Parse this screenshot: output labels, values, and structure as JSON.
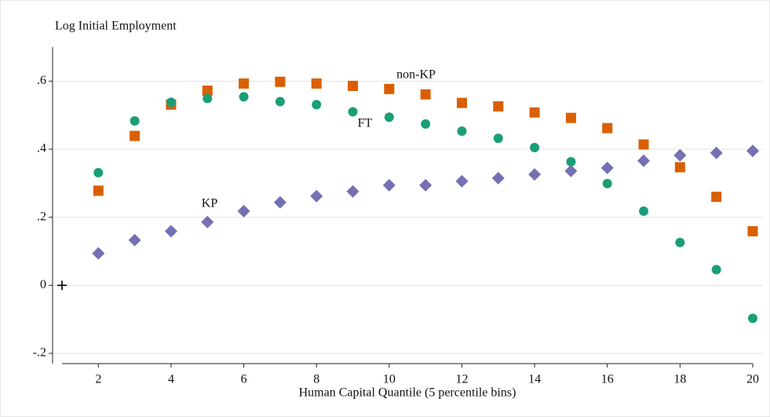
{
  "chart_data": {
    "type": "scatter",
    "title": "Log Initial Employment",
    "x_label": "Human Capital Quantile (5 percentile bins)",
    "xlim": [
      1,
      20
    ],
    "ylim": [
      -0.23,
      0.7
    ],
    "xticks": [
      2,
      4,
      6,
      8,
      10,
      12,
      14,
      16,
      18,
      20
    ],
    "yticks": [
      {
        "value": -0.2,
        "label": "-.2"
      },
      0,
      {
        "value": 0.2,
        "label": ".2"
      },
      {
        "value": 0.4,
        "label": ".4"
      },
      {
        "value": 0.6,
        "label": ".6"
      }
    ],
    "grid": true,
    "series": [
      {
        "name": "non-KP",
        "color": "#d95f02",
        "marker": "square",
        "x": [
          2,
          3,
          4,
          5,
          6,
          7,
          8,
          9,
          10,
          11,
          12,
          13,
          14,
          15,
          16,
          17,
          18,
          19,
          20
        ],
        "values": [
          0.278,
          0.439,
          0.531,
          0.572,
          0.593,
          0.598,
          0.593,
          0.586,
          0.577,
          0.561,
          0.536,
          0.526,
          0.508,
          0.492,
          0.462,
          0.414,
          0.347,
          0.26,
          0.159
        ]
      },
      {
        "name": "FT",
        "color": "#1b9e77",
        "marker": "circle",
        "x": [
          2,
          3,
          4,
          5,
          6,
          7,
          8,
          9,
          10,
          11,
          12,
          13,
          14,
          15,
          16,
          17,
          18,
          19,
          20
        ],
        "values": [
          0.331,
          0.483,
          0.538,
          0.549,
          0.554,
          0.54,
          0.531,
          0.51,
          0.494,
          0.474,
          0.453,
          0.432,
          0.405,
          0.363,
          0.299,
          0.218,
          0.126,
          0.046,
          -0.097
        ]
      },
      {
        "name": "KP",
        "color": "#7570b3",
        "marker": "diamond",
        "x": [
          2,
          3,
          4,
          5,
          6,
          7,
          8,
          9,
          10,
          11,
          12,
          13,
          14,
          15,
          16,
          17,
          18,
          19,
          20
        ],
        "values": [
          0.094,
          0.133,
          0.159,
          0.186,
          0.218,
          0.244,
          0.262,
          0.276,
          0.294,
          0.294,
          0.306,
          0.315,
          0.326,
          0.336,
          0.345,
          0.366,
          0.382,
          0.389,
          0.395
        ]
      },
      {
        "color": "#000000",
        "marker": "plus",
        "x": [
          1
        ],
        "values": [
          0
        ]
      }
    ]
  }
}
